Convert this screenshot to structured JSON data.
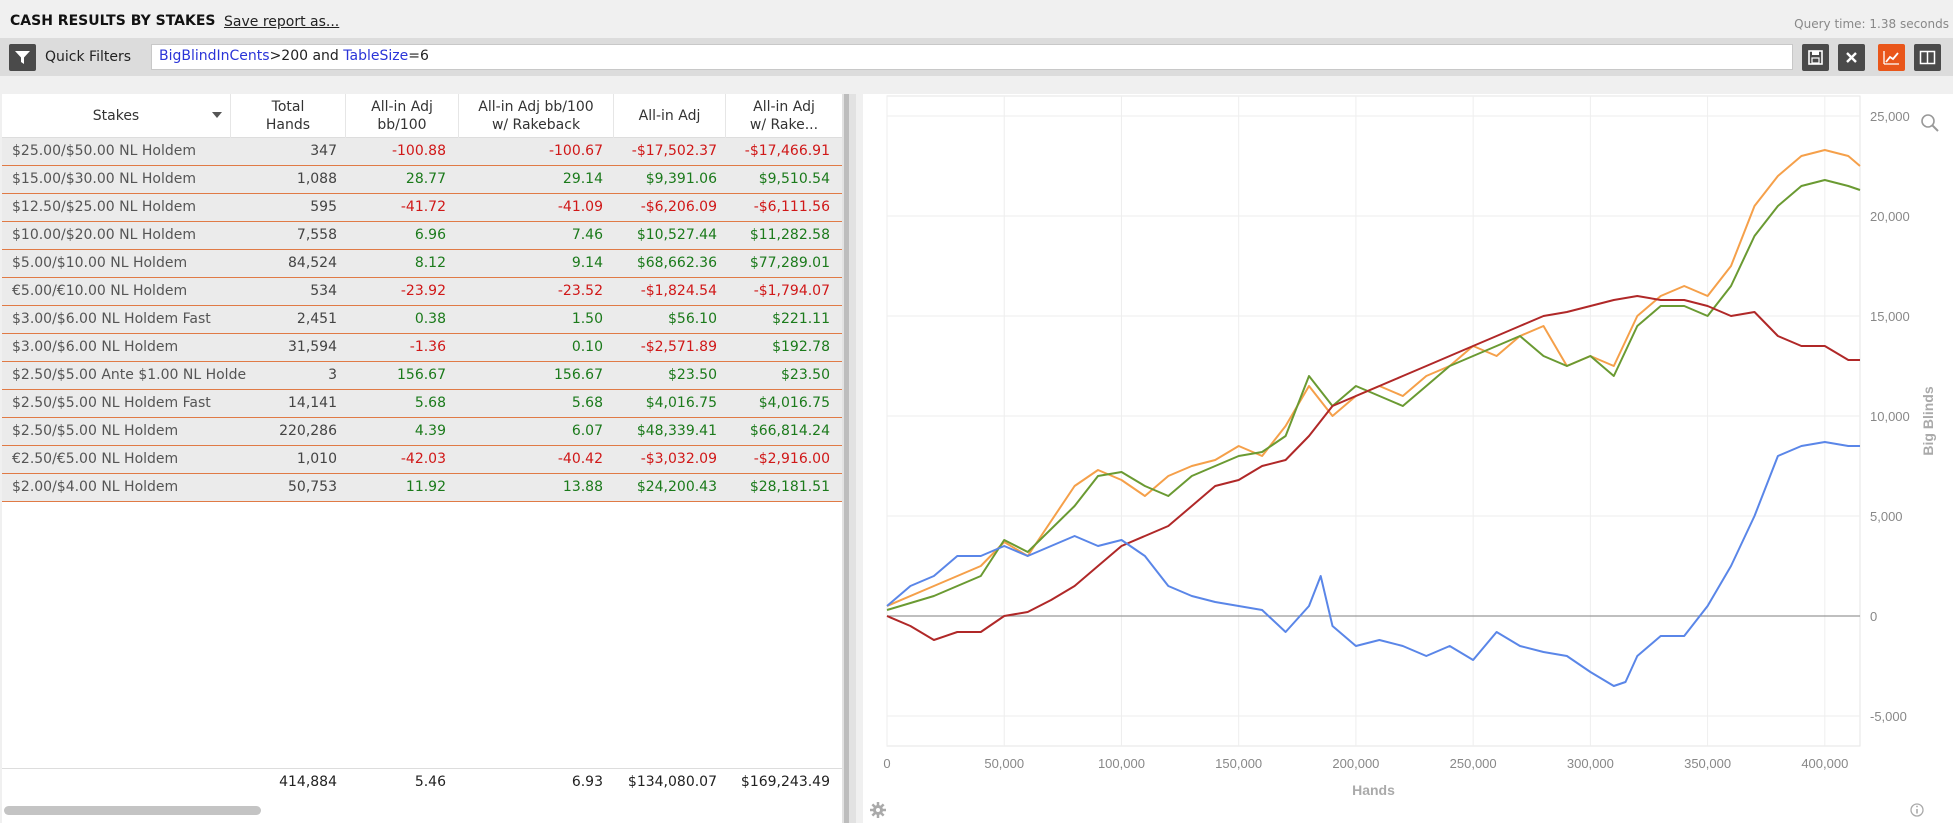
{
  "header": {
    "title": "CASH RESULTS BY STAKES",
    "save_link": "Save report as...",
    "query_time": "Query time: 1.38 seconds"
  },
  "filter_bar": {
    "label": "Quick Filters",
    "query_parts": [
      {
        "text": "BigBlindInCents",
        "kind": "field"
      },
      {
        "text": ">200 and ",
        "kind": "op"
      },
      {
        "text": "TableSize",
        "kind": "field"
      },
      {
        "text": "=6",
        "kind": "op"
      }
    ],
    "icons": [
      "filter-icon",
      "save-icon",
      "clear-icon",
      "graph-icon",
      "split-view-icon"
    ]
  },
  "table": {
    "columns": [
      {
        "label": "Stakes"
      },
      {
        "label": "Total\nHands"
      },
      {
        "label": "All-in Adj\nbb/100"
      },
      {
        "label": "All-in Adj bb/100\nw/ Rakeback"
      },
      {
        "label": "All-in Adj"
      },
      {
        "label": "All-in Adj\nw/ Rake..."
      }
    ],
    "rows": [
      [
        "$25.00/$50.00 NL Holdem",
        "347",
        "-100.88",
        "-100.67",
        "-$17,502.37",
        "-$17,466.91"
      ],
      [
        "$15.00/$30.00 NL Holdem",
        "1,088",
        "28.77",
        "29.14",
        "$9,391.06",
        "$9,510.54"
      ],
      [
        "$12.50/$25.00 NL Holdem",
        "595",
        "-41.72",
        "-41.09",
        "-$6,206.09",
        "-$6,111.56"
      ],
      [
        "$10.00/$20.00 NL Holdem",
        "7,558",
        "6.96",
        "7.46",
        "$10,527.44",
        "$11,282.58"
      ],
      [
        "$5.00/$10.00 NL Holdem",
        "84,524",
        "8.12",
        "9.14",
        "$68,662.36",
        "$77,289.01"
      ],
      [
        "€5.00/€10.00 NL Holdem",
        "534",
        "-23.92",
        "-23.52",
        "-$1,824.54",
        "-$1,794.07"
      ],
      [
        "$3.00/$6.00 NL Holdem Fast",
        "2,451",
        "0.38",
        "1.50",
        "$56.10",
        "$221.11"
      ],
      [
        "$3.00/$6.00 NL Holdem",
        "31,594",
        "-1.36",
        "0.10",
        "-$2,571.89",
        "$192.78"
      ],
      [
        "$2.50/$5.00 Ante $1.00 NL Holde",
        "3",
        "156.67",
        "156.67",
        "$23.50",
        "$23.50"
      ],
      [
        "$2.50/$5.00 NL Holdem Fast",
        "14,141",
        "5.68",
        "5.68",
        "$4,016.75",
        "$4,016.75"
      ],
      [
        "$2.50/$5.00 NL Holdem",
        "220,286",
        "4.39",
        "6.07",
        "$48,339.41",
        "$66,814.24"
      ],
      [
        "€2.50/€5.00 NL Holdem",
        "1,010",
        "-42.03",
        "-40.42",
        "-$3,032.09",
        "-$2,916.00"
      ],
      [
        "$2.00/$4.00 NL Holdem",
        "50,753",
        "11.92",
        "13.88",
        "$24,200.43",
        "$28,181.51"
      ]
    ],
    "totals": [
      "",
      "414,884",
      "5.46",
      "6.93",
      "$134,080.07",
      "$169,243.49"
    ]
  },
  "colors": {
    "negative": "#d01818",
    "positive": "#1b7a1b",
    "row_border": "#e07a45",
    "accent": "#e9561a"
  },
  "chart_data": {
    "type": "line",
    "title": "",
    "xlabel": "Hands",
    "ylabel": "Big Blinds",
    "xlim": [
      0,
      415000
    ],
    "ylim": [
      -6500,
      26000
    ],
    "x_ticks": [
      0,
      50000,
      100000,
      150000,
      200000,
      250000,
      300000,
      350000,
      400000
    ],
    "x_tick_labels": [
      "0",
      "50,000",
      "100,000",
      "150,000",
      "200,000",
      "250,000",
      "300,000",
      "350,000",
      "400,000"
    ],
    "y_ticks": [
      -5000,
      0,
      5000,
      10000,
      15000,
      20000,
      25000
    ],
    "y_tick_labels": [
      "-5,000",
      "0",
      "5,000",
      "10,000",
      "15,000",
      "20,000",
      "25,000"
    ],
    "y_axis_side": "right",
    "grid": true,
    "series": [
      {
        "color": "#f5a04a",
        "x": [
          0,
          20000,
          40000,
          50000,
          60000,
          80000,
          90000,
          100000,
          110000,
          120000,
          130000,
          140000,
          150000,
          160000,
          170000,
          180000,
          190000,
          200000,
          210000,
          220000,
          230000,
          240000,
          250000,
          260000,
          270000,
          280000,
          290000,
          300000,
          310000,
          320000,
          330000,
          340000,
          350000,
          360000,
          370000,
          380000,
          390000,
          400000,
          410000,
          415000
        ],
        "y": [
          500,
          1500,
          2500,
          3700,
          3000,
          6500,
          7300,
          6800,
          6000,
          7000,
          7500,
          7800,
          8500,
          8000,
          9500,
          11500,
          10000,
          11000,
          11500,
          11000,
          12000,
          12500,
          13500,
          13000,
          14000,
          14500,
          12500,
          13000,
          12500,
          15000,
          16000,
          16500,
          16000,
          17500,
          20500,
          22000,
          23000,
          23300,
          23000,
          22500
        ]
      },
      {
        "color": "#6a9a32",
        "x": [
          0,
          20000,
          40000,
          50000,
          60000,
          80000,
          90000,
          100000,
          110000,
          120000,
          130000,
          140000,
          150000,
          160000,
          170000,
          180000,
          190000,
          200000,
          210000,
          220000,
          230000,
          240000,
          250000,
          260000,
          270000,
          280000,
          290000,
          300000,
          310000,
          320000,
          330000,
          340000,
          350000,
          360000,
          370000,
          380000,
          390000,
          400000,
          410000,
          415000
        ],
        "y": [
          300,
          1000,
          2000,
          3800,
          3200,
          5500,
          7000,
          7200,
          6500,
          6000,
          7000,
          7500,
          8000,
          8200,
          9000,
          12000,
          10500,
          11500,
          11000,
          10500,
          11500,
          12500,
          13000,
          13500,
          14000,
          13000,
          12500,
          13000,
          12000,
          14500,
          15500,
          15500,
          15000,
          16500,
          19000,
          20500,
          21500,
          21800,
          21500,
          21300
        ]
      },
      {
        "color": "#b02828",
        "x": [
          0,
          10000,
          20000,
          30000,
          40000,
          50000,
          60000,
          70000,
          80000,
          90000,
          100000,
          110000,
          120000,
          130000,
          140000,
          150000,
          160000,
          170000,
          180000,
          190000,
          200000,
          210000,
          220000,
          230000,
          240000,
          250000,
          260000,
          270000,
          280000,
          290000,
          300000,
          310000,
          320000,
          330000,
          340000,
          350000,
          360000,
          370000,
          380000,
          390000,
          400000,
          410000,
          415000
        ],
        "y": [
          0,
          -500,
          -1200,
          -800,
          -800,
          0,
          200,
          800,
          1500,
          2500,
          3500,
          4000,
          4500,
          5500,
          6500,
          6800,
          7500,
          7800,
          9000,
          10500,
          11000,
          11500,
          12000,
          12500,
          13000,
          13500,
          14000,
          14500,
          15000,
          15200,
          15500,
          15800,
          16000,
          15800,
          15800,
          15500,
          15000,
          15200,
          14000,
          13500,
          13500,
          12800,
          12800
        ]
      },
      {
        "color": "#5a86e8",
        "x": [
          0,
          10000,
          20000,
          30000,
          40000,
          50000,
          60000,
          70000,
          80000,
          90000,
          100000,
          110000,
          120000,
          130000,
          140000,
          150000,
          160000,
          170000,
          180000,
          185000,
          190000,
          200000,
          210000,
          220000,
          230000,
          240000,
          250000,
          260000,
          270000,
          280000,
          290000,
          300000,
          310000,
          315000,
          320000,
          330000,
          340000,
          350000,
          360000,
          370000,
          380000,
          390000,
          400000,
          410000,
          415000
        ],
        "y": [
          500,
          1500,
          2000,
          3000,
          3000,
          3500,
          3000,
          3500,
          4000,
          3500,
          3800,
          3000,
          1500,
          1000,
          700,
          500,
          300,
          -800,
          500,
          2000,
          -500,
          -1500,
          -1200,
          -1500,
          -2000,
          -1500,
          -2200,
          -800,
          -1500,
          -1800,
          -2000,
          -2800,
          -3500,
          -3300,
          -2000,
          -1000,
          -1000,
          500,
          2500,
          5000,
          8000,
          8500,
          8700,
          8500,
          8500
        ]
      }
    ]
  }
}
